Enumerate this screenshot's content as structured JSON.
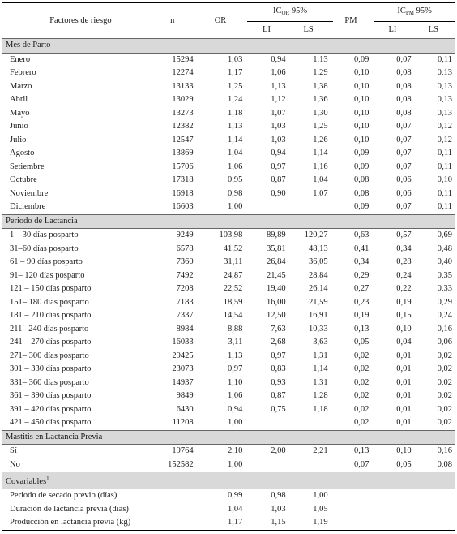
{
  "header": {
    "factor": "Factores de riesgo",
    "n": "n",
    "or": "OR",
    "ic_or_prefix": "IC",
    "ic_or_sub": "OR",
    "ic_or_suffix": " 95%",
    "pm": "PM",
    "ic_pm_prefix": "IC",
    "ic_pm_sub": "PM",
    "ic_pm_suffix": " 95%",
    "li": "LI",
    "ls": "LS"
  },
  "sections": [
    {
      "title": "Mes de Parto",
      "sup": "",
      "rows": [
        [
          "Enero",
          "15294",
          "1,03",
          "0,94",
          "1,13",
          "0,09",
          "0,07",
          "0,11"
        ],
        [
          "Febrero",
          "12274",
          "1,17",
          "1,06",
          "1,29",
          "0,10",
          "0,08",
          "0,13"
        ],
        [
          "Marzo",
          "13133",
          "1,25",
          "1,13",
          "1,38",
          "0,10",
          "0,08",
          "0,13"
        ],
        [
          "Abril",
          "13029",
          "1,24",
          "1,12",
          "1,36",
          "0,10",
          "0,08",
          "0,13"
        ],
        [
          "Mayo",
          "13273",
          "1,18",
          "1,07",
          "1,30",
          "0,10",
          "0,08",
          "0,13"
        ],
        [
          "Junio",
          "12382",
          "1,13",
          "1,03",
          "1,25",
          "0,10",
          "0,07",
          "0,12"
        ],
        [
          "Julio",
          "12547",
          "1,14",
          "1,03",
          "1,26",
          "0,10",
          "0,07",
          "0,12"
        ],
        [
          "Agosto",
          "13869",
          "1,04",
          "0,94",
          "1,14",
          "0,09",
          "0,07",
          "0,11"
        ],
        [
          "Setiembre",
          "15706",
          "1,06",
          "0,97",
          "1,16",
          "0,09",
          "0,07",
          "0,11"
        ],
        [
          "Octubre",
          "17318",
          "0,95",
          "0,87",
          "1,04",
          "0,08",
          "0,06",
          "0,10"
        ],
        [
          "Noviembre",
          "16918",
          "0,98",
          "0,90",
          "1,07",
          "0,08",
          "0,06",
          "0,11"
        ],
        [
          "Diciembre",
          "16603",
          "1,00",
          "",
          "",
          "0,09",
          "0,07",
          "0,11"
        ]
      ]
    },
    {
      "title": "Periodo de Lactancia",
      "sup": "",
      "rows": [
        [
          "1 – 30 días posparto",
          "9249",
          "103,98",
          "89,89",
          "120,27",
          "0,63",
          "0,57",
          "0,69"
        ],
        [
          "31–60 días posparto",
          "6578",
          "41,52",
          "35,81",
          "48,13",
          "0,41",
          "0,34",
          "0,48"
        ],
        [
          "61 – 90 días posparto",
          "7360",
          "31,11",
          "26,84",
          "36,05",
          "0,34",
          "0,28",
          "0,40"
        ],
        [
          "91– 120 días posparto",
          "7492",
          "24,87",
          "21,45",
          "28,84",
          "0,29",
          "0,24",
          "0,35"
        ],
        [
          "121 – 150 días posparto",
          "7208",
          "22,52",
          "19,40",
          "26,14",
          "0,27",
          "0,22",
          "0,33"
        ],
        [
          "151– 180 días posparto",
          "7183",
          "18,59",
          "16,00",
          "21,59",
          "0,23",
          "0,19",
          "0,29"
        ],
        [
          "181 – 210 días posparto",
          "7337",
          "14,54",
          "12,50",
          "16,91",
          "0,19",
          "0,15",
          "0,24"
        ],
        [
          "211– 240 días posparto",
          "8984",
          "8,88",
          "7,63",
          "10,33",
          "0,13",
          "0,10",
          "0,16"
        ],
        [
          "241 – 270 días posparto",
          "16033",
          "3,11",
          "2,68",
          "3,63",
          "0,05",
          "0,04",
          "0,06"
        ],
        [
          "271– 300 días posparto",
          "29425",
          "1,13",
          "0,97",
          "1,31",
          "0,02",
          "0,01",
          "0,02"
        ],
        [
          "301 – 330 días posparto",
          "23073",
          "0,97",
          "0,83",
          "1,14",
          "0,02",
          "0,01",
          "0,02"
        ],
        [
          "331– 360 días posparto",
          "14937",
          "1,10",
          "0,93",
          "1,31",
          "0,02",
          "0,01",
          "0,02"
        ],
        [
          "361 – 390 días posparto",
          "9849",
          "1,06",
          "0,87",
          "1,28",
          "0,02",
          "0,01",
          "0,02"
        ],
        [
          "391 – 420 días posparto",
          "6430",
          "0,94",
          "0,75",
          "1,18",
          "0,02",
          "0,01",
          "0,02"
        ],
        [
          "421 – 450 días posparto",
          "11208",
          "1,00",
          "",
          "",
          "0,02",
          "0,01",
          "0,02"
        ]
      ]
    },
    {
      "title": "Mastitis en Lactancia Previa",
      "sup": "",
      "rows": [
        [
          "Sí",
          "19764",
          "2,10",
          "2,00",
          "2,21",
          "0,13",
          "0,10",
          "0,16"
        ],
        [
          "No",
          "152582",
          "1,00",
          "",
          "",
          "0,07",
          "0,05",
          "0,08"
        ]
      ]
    },
    {
      "title": "Covariables",
      "sup": "1",
      "rows": [
        [
          "Periodo de secado previo (días)",
          "",
          "0,99",
          "0,98",
          "1,00",
          "",
          "",
          ""
        ],
        [
          "Duración de lactancia previa (días)",
          "",
          "1,04",
          "1,03",
          "1,05",
          "",
          "",
          ""
        ],
        [
          "Producción en lactancia previa (kg)",
          "",
          "1,17",
          "1,15",
          "1,19",
          "",
          "",
          ""
        ]
      ]
    }
  ]
}
